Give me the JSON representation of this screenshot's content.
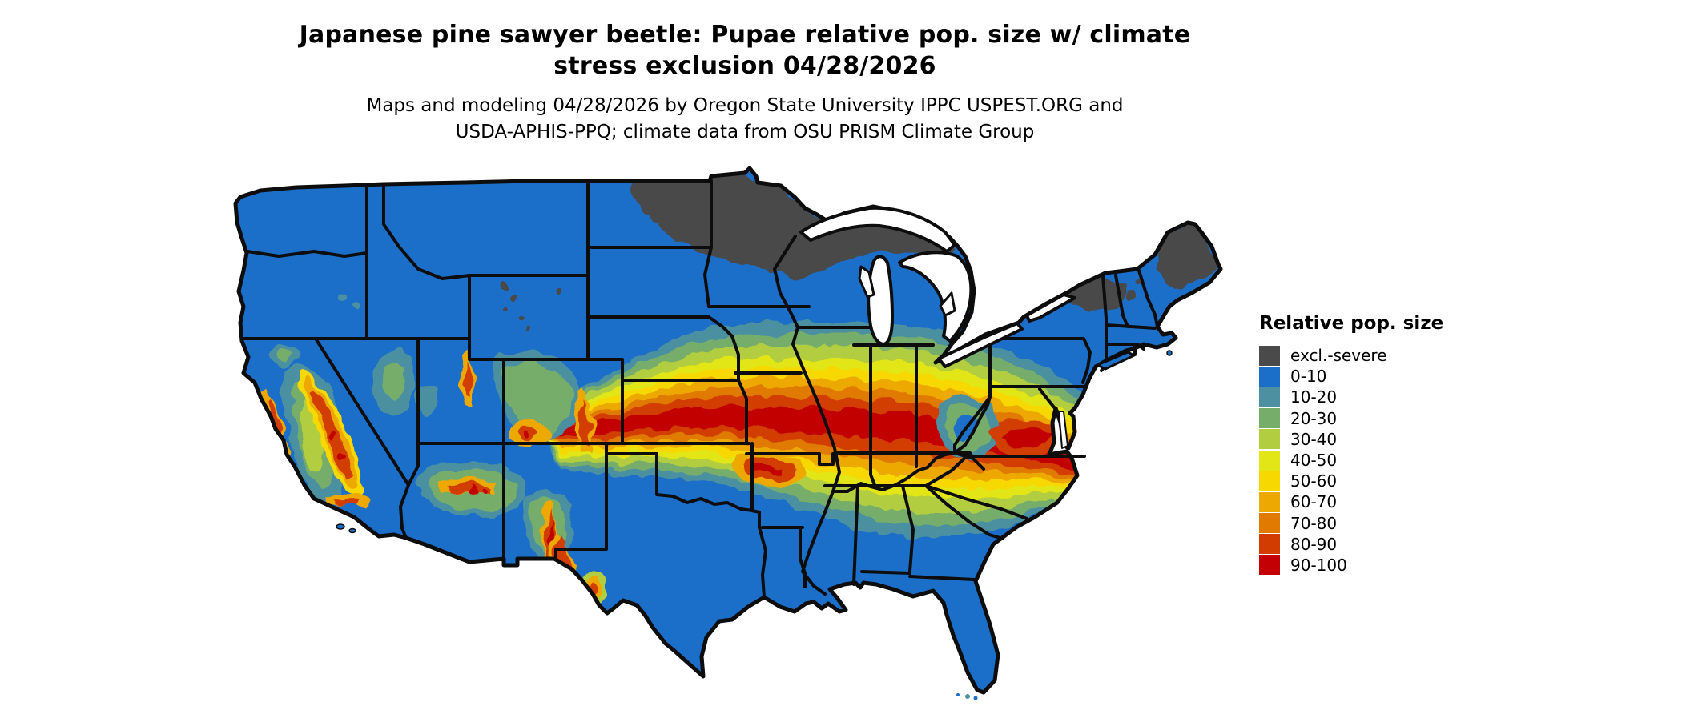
{
  "title": {
    "line1": "Japanese pine sawyer beetle: Pupae relative pop. size w/ climate",
    "line2": "stress exclusion 04/28/2026"
  },
  "subtitle": {
    "line1": "Maps and modeling 04/28/2026 by Oregon State University IPPC USPEST.ORG and",
    "line2": "USDA-APHIS-PPQ; climate data from OSU PRISM Climate Group"
  },
  "legend": {
    "title": "Relative pop. size",
    "items": [
      {
        "label": "excl.-severe",
        "color": "#4a4a4a"
      },
      {
        "label": "0-10",
        "color": "#1b6fc9"
      },
      {
        "label": "10-20",
        "color": "#4c90a1"
      },
      {
        "label": "20-30",
        "color": "#76ad6b"
      },
      {
        "label": "30-40",
        "color": "#b2ce40"
      },
      {
        "label": "40-50",
        "color": "#e2e516"
      },
      {
        "label": "50-60",
        "color": "#f7d800"
      },
      {
        "label": "60-70",
        "color": "#eda902"
      },
      {
        "label": "70-80",
        "color": "#e07a00"
      },
      {
        "label": "80-90",
        "color": "#d23c00"
      },
      {
        "label": "90-100",
        "color": "#c30003"
      }
    ]
  },
  "map": {
    "region": "Continental United States (lower 48) with state boundaries",
    "style": "classified raster population-size map",
    "water_color": "#ffffff",
    "border_color": "#0d0d0d",
    "excluded_severe_areas": "northern Minnesota, northern Wisconsin, upper Michigan, Adirondacks, northern New England, northern Maine, high Rockies",
    "highest_band_areas": "Kansas through Missouri, Illinois, Indiana, Kentucky into Virginia; Ozarks; Sierra Nevada and southwestern mountain ranges",
    "lowest_band_areas": "Pacific Northwest, northern Plains, Gulf Coast, Florida, Texas, Northeast coast"
  }
}
